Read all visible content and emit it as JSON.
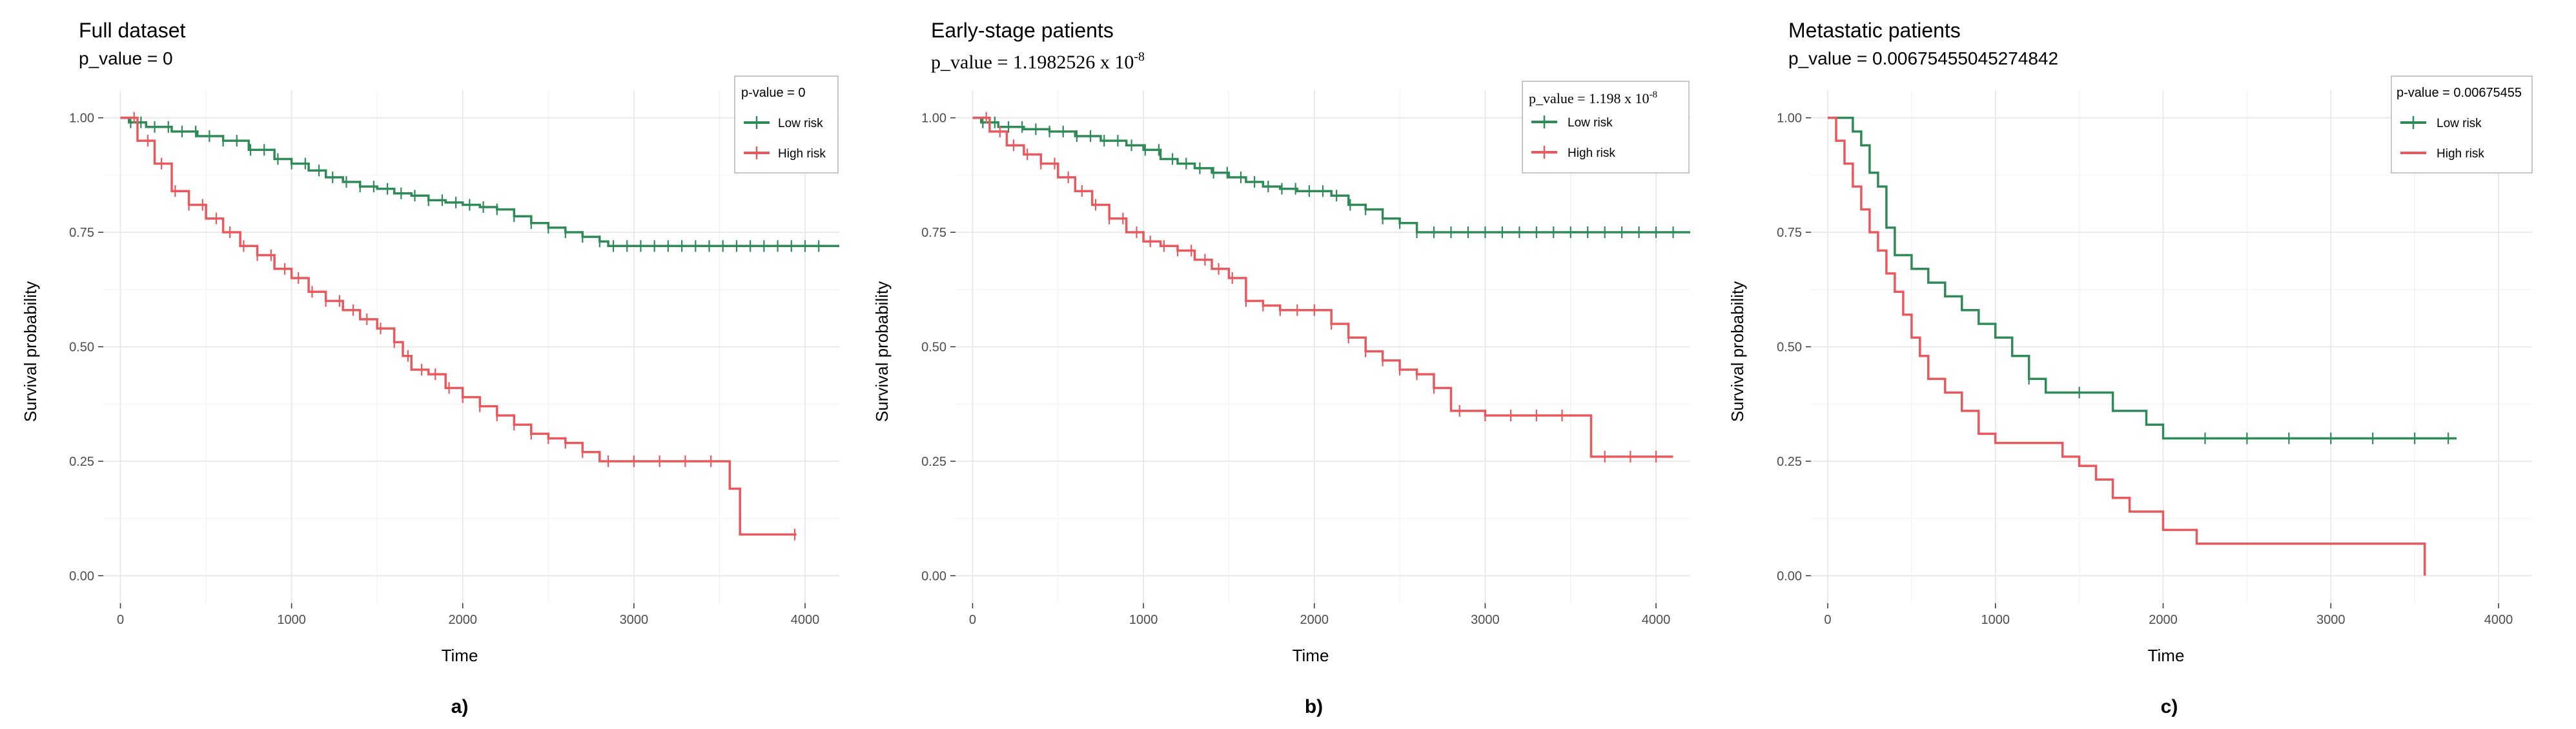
{
  "figure": {
    "low_color": "#2e8b57",
    "high_color": "#e8585c"
  },
  "chart_data": [
    {
      "type": "line",
      "title": "Full dataset",
      "subtitle": "p_value = 0",
      "subtitle_font": "sans",
      "xlabel": "Time",
      "ylabel": "Survival probability",
      "xlim": [
        -100,
        4200
      ],
      "ylim": [
        0,
        1
      ],
      "xticks": [
        0,
        1000,
        2000,
        3000,
        4000
      ],
      "yticks": [
        0,
        0.25,
        0.5,
        0.75,
        1.0
      ],
      "ytick_labels": [
        "0.00",
        "0.25",
        "0.50",
        "0.75",
        "1.00"
      ],
      "legend_title": "p-value = 0",
      "legend_title_font": "sans",
      "panel_label": "a)",
      "series": [
        {
          "name": "Low risk",
          "color": "#2e8b57",
          "x": [
            0,
            50,
            150,
            300,
            450,
            600,
            750,
            900,
            1000,
            1100,
            1200,
            1300,
            1400,
            1500,
            1600,
            1700,
            1800,
            1900,
            2000,
            2100,
            2200,
            2300,
            2400,
            2500,
            2600,
            2700,
            2800,
            2850,
            4200
          ],
          "y": [
            1.0,
            0.99,
            0.98,
            0.97,
            0.96,
            0.95,
            0.93,
            0.91,
            0.9,
            0.885,
            0.87,
            0.86,
            0.85,
            0.845,
            0.835,
            0.83,
            0.82,
            0.815,
            0.81,
            0.805,
            0.8,
            0.785,
            0.77,
            0.76,
            0.75,
            0.74,
            0.73,
            0.72,
            0.72
          ],
          "censor_x": [
            60,
            120,
            200,
            280,
            360,
            440,
            520,
            600,
            680,
            760,
            840,
            920,
            1000,
            1080,
            1160,
            1240,
            1320,
            1400,
            1480,
            1560,
            1640,
            1720,
            1800,
            1880,
            1960,
            2040,
            2120,
            2200,
            2300,
            2400,
            2500,
            2600,
            2700,
            2800,
            2880,
            2960,
            3040,
            3120,
            3200,
            3280,
            3360,
            3440,
            3520,
            3600,
            3680,
            3760,
            3840,
            3920,
            4000,
            4080
          ]
        },
        {
          "name": "High risk",
          "color": "#e8585c",
          "x": [
            0,
            100,
            200,
            300,
            400,
            500,
            600,
            700,
            800,
            900,
            1000,
            1100,
            1200,
            1300,
            1400,
            1500,
            1600,
            1650,
            1700,
            1800,
            1900,
            2000,
            2100,
            2200,
            2300,
            2400,
            2500,
            2600,
            2700,
            2800,
            3000,
            3560,
            3600,
            3620,
            3950
          ],
          "y": [
            1.0,
            0.95,
            0.9,
            0.84,
            0.81,
            0.78,
            0.75,
            0.72,
            0.7,
            0.67,
            0.65,
            0.62,
            0.6,
            0.58,
            0.56,
            0.54,
            0.51,
            0.48,
            0.45,
            0.44,
            0.41,
            0.39,
            0.37,
            0.35,
            0.33,
            0.31,
            0.3,
            0.29,
            0.27,
            0.25,
            0.25,
            0.19,
            0.19,
            0.09,
            0.09
          ],
          "censor_x": [
            80,
            160,
            240,
            320,
            400,
            480,
            560,
            640,
            720,
            800,
            880,
            960,
            1040,
            1120,
            1200,
            1280,
            1360,
            1440,
            1520,
            1600,
            1680,
            1760,
            1840,
            1920,
            2000,
            2100,
            2200,
            2300,
            2400,
            2500,
            2600,
            2700,
            2850,
            3000,
            3150,
            3300,
            3450,
            3940
          ]
        }
      ]
    },
    {
      "type": "line",
      "title": "Early-stage patients",
      "subtitle": "p_value = 1.1982526  x 10",
      "subtitle_exp": "-8",
      "subtitle_font": "serif",
      "xlabel": "Time",
      "ylabel": "Survival probability",
      "xlim": [
        -100,
        4200
      ],
      "ylim": [
        0,
        1
      ],
      "xticks": [
        0,
        1000,
        2000,
        3000,
        4000
      ],
      "yticks": [
        0,
        0.25,
        0.5,
        0.75,
        1.0
      ],
      "ytick_labels": [
        "0.00",
        "0.25",
        "0.50",
        "0.75",
        "1.00"
      ],
      "legend_title": "p_value = 1.198 x 10",
      "legend_title_exp": "-8",
      "legend_title_font": "serif",
      "panel_label": "b)",
      "series": [
        {
          "name": "Low risk",
          "color": "#2e8b57",
          "x": [
            0,
            50,
            150,
            300,
            450,
            600,
            750,
            900,
            1000,
            1100,
            1200,
            1300,
            1400,
            1500,
            1600,
            1700,
            1800,
            1900,
            2000,
            2100,
            2200,
            2300,
            2400,
            2500,
            2600,
            4200
          ],
          "y": [
            1.0,
            0.99,
            0.98,
            0.975,
            0.97,
            0.96,
            0.95,
            0.94,
            0.93,
            0.91,
            0.9,
            0.89,
            0.88,
            0.87,
            0.86,
            0.85,
            0.845,
            0.84,
            0.84,
            0.83,
            0.81,
            0.8,
            0.78,
            0.77,
            0.75,
            0.75
          ],
          "censor_x": [
            60,
            130,
            210,
            290,
            370,
            450,
            530,
            610,
            690,
            770,
            850,
            930,
            1010,
            1090,
            1170,
            1250,
            1330,
            1410,
            1490,
            1570,
            1650,
            1730,
            1810,
            1890,
            1970,
            2050,
            2130,
            2210,
            2300,
            2400,
            2500,
            2600,
            2700,
            2800,
            2900,
            3000,
            3100,
            3200,
            3300,
            3400,
            3500,
            3600,
            3700,
            3800,
            3900,
            4000,
            4100
          ]
        },
        {
          "name": "High risk",
          "color": "#e8585c",
          "x": [
            0,
            100,
            200,
            300,
            400,
            500,
            600,
            700,
            800,
            900,
            1000,
            1100,
            1200,
            1300,
            1400,
            1500,
            1600,
            1700,
            1800,
            2000,
            2100,
            2200,
            2300,
            2400,
            2500,
            2600,
            2700,
            2800,
            3000,
            3600,
            3620,
            4100
          ],
          "y": [
            1.0,
            0.97,
            0.94,
            0.92,
            0.9,
            0.87,
            0.84,
            0.81,
            0.78,
            0.75,
            0.73,
            0.72,
            0.71,
            0.69,
            0.67,
            0.65,
            0.6,
            0.59,
            0.58,
            0.58,
            0.55,
            0.52,
            0.49,
            0.47,
            0.45,
            0.44,
            0.41,
            0.36,
            0.35,
            0.35,
            0.26,
            0.26
          ],
          "censor_x": [
            80,
            160,
            240,
            320,
            400,
            480,
            560,
            640,
            720,
            800,
            880,
            960,
            1040,
            1120,
            1200,
            1280,
            1360,
            1440,
            1520,
            1600,
            1700,
            1800,
            1900,
            2000,
            2100,
            2200,
            2300,
            2400,
            2500,
            2600,
            2700,
            2850,
            3000,
            3150,
            3300,
            3450,
            3700,
            3850,
            4000
          ]
        }
      ]
    },
    {
      "type": "line",
      "title": "Metastatic patients",
      "subtitle": "p_value = 0.00675455045274842",
      "subtitle_font": "sans",
      "xlabel": "Time",
      "ylabel": "Survival probability",
      "xlim": [
        -100,
        4200
      ],
      "ylim": [
        0,
        1
      ],
      "xticks": [
        0,
        1000,
        2000,
        3000,
        4000
      ],
      "yticks": [
        0,
        0.25,
        0.5,
        0.75,
        1.0
      ],
      "ytick_labels": [
        "0.00",
        "0.25",
        "0.50",
        "0.75",
        "1.00"
      ],
      "legend_title": "p-value = 0.00675455",
      "legend_title_font": "sans",
      "panel_label": "c)",
      "series": [
        {
          "name": "Low risk",
          "color": "#2e8b57",
          "x": [
            0,
            100,
            150,
            200,
            250,
            300,
            350,
            400,
            500,
            600,
            700,
            800,
            900,
            1000,
            1100,
            1200,
            1300,
            1600,
            1700,
            1900,
            2000,
            3750
          ],
          "y": [
            1.0,
            1.0,
            0.97,
            0.94,
            0.88,
            0.85,
            0.76,
            0.7,
            0.67,
            0.64,
            0.61,
            0.58,
            0.55,
            0.52,
            0.48,
            0.43,
            0.4,
            0.4,
            0.36,
            0.33,
            0.3,
            0.3
          ],
          "censor_x": [
            1200,
            1500,
            2250,
            2500,
            2750,
            3000,
            3250,
            3500,
            3700
          ]
        },
        {
          "name": "High risk",
          "color": "#e8585c",
          "x": [
            0,
            50,
            100,
            150,
            200,
            250,
            300,
            350,
            400,
            450,
            500,
            550,
            600,
            700,
            800,
            900,
            1000,
            1200,
            1400,
            1500,
            1600,
            1700,
            1800,
            2000,
            2200,
            2250,
            3550,
            3560
          ],
          "y": [
            1.0,
            0.95,
            0.9,
            0.85,
            0.8,
            0.75,
            0.71,
            0.66,
            0.62,
            0.57,
            0.52,
            0.48,
            0.43,
            0.4,
            0.36,
            0.31,
            0.29,
            0.29,
            0.26,
            0.24,
            0.21,
            0.17,
            0.14,
            0.1,
            0.07,
            0.07,
            0.07,
            0.0
          ],
          "censor_x": []
        }
      ]
    }
  ]
}
